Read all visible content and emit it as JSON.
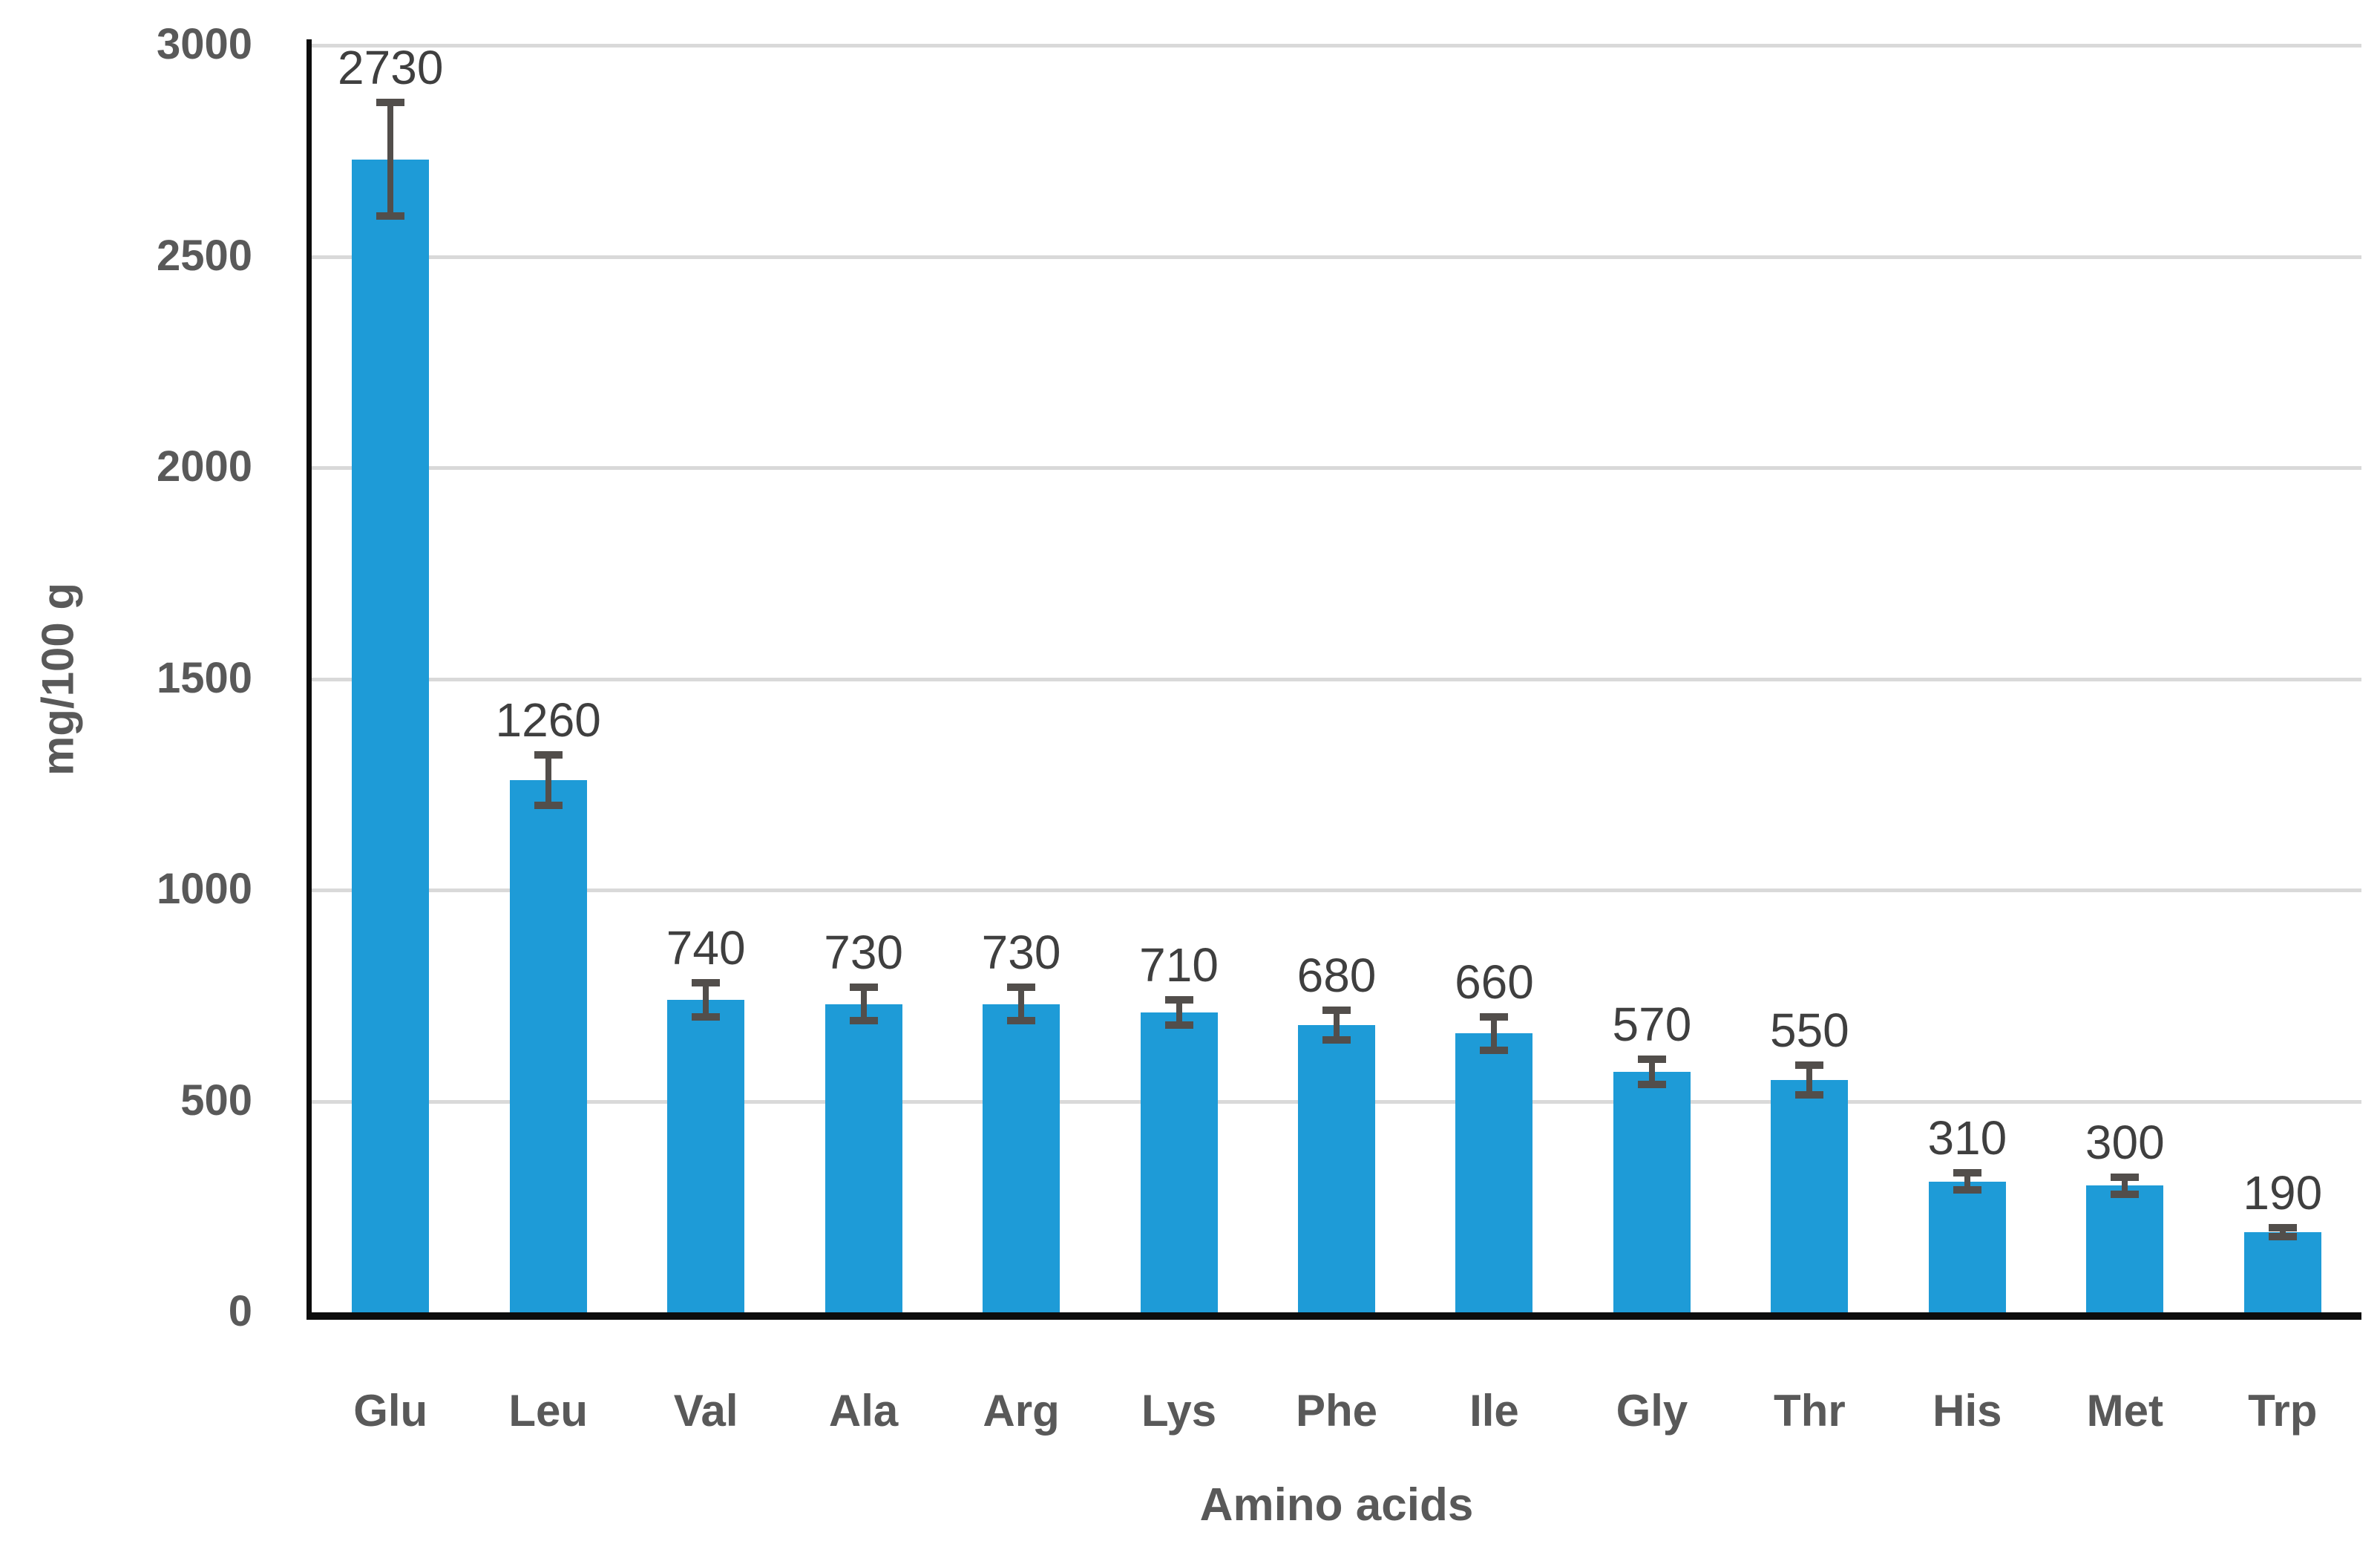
{
  "chart_data": {
    "type": "bar",
    "title": "",
    "xlabel": "Amino acids",
    "ylabel": "mg/100 g",
    "categories": [
      "Glu",
      "Leu",
      "Val",
      "Ala",
      "Arg",
      "Lys",
      "Phe",
      "Ile",
      "Gly",
      "Thr",
      "His",
      "Met",
      "Trp"
    ],
    "values": [
      2730,
      1260,
      740,
      730,
      730,
      710,
      680,
      660,
      570,
      550,
      310,
      300,
      190
    ],
    "errors": [
      135,
      60,
      40,
      40,
      40,
      30,
      35,
      40,
      30,
      35,
      20,
      20,
      10
    ],
    "data_labels": [
      "2730",
      "1260",
      "740",
      "730",
      "730",
      "710",
      "680",
      "660",
      "570",
      "550",
      "310",
      "300",
      "190"
    ],
    "yticks": [
      0,
      500,
      1000,
      1500,
      2000,
      2500,
      3000
    ],
    "ylim": [
      0,
      3000
    ],
    "grid": true,
    "legend": false,
    "error_bars": true,
    "colors": {
      "bar": "#1E9BD7",
      "gridline": "#D9D9D9",
      "axis": "#0d0d0d",
      "error_bar": "#524E4B",
      "tick_label": "#595959",
      "category_label": "#595959",
      "data_label": "#3F3F3F",
      "background": "#FFFFFF"
    }
  }
}
